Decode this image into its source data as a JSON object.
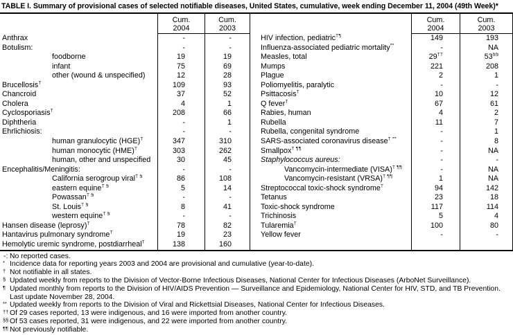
{
  "title": "TABLE I. Summary of provisional cases of selected notifiable diseases, United States, cumulative, week ending December 11, 2004 (49th Week)*",
  "header": {
    "cum": "Cum.",
    "y2004": "2004",
    "y2003": "2003"
  },
  "left_rows": [
    {
      "label": "Anthrax",
      "v2004": "-",
      "v2003": "-"
    },
    {
      "label": "Botulism:",
      "v2004": "-",
      "v2003": "-"
    },
    {
      "label": "foodborne",
      "indent": 1,
      "v2004": "19",
      "v2003": "19"
    },
    {
      "label": "infant",
      "indent": 1,
      "v2004": "75",
      "v2003": "69"
    },
    {
      "label": "other (wound & unspecified)",
      "indent": 1,
      "v2004": "12",
      "v2003": "28"
    },
    {
      "label": "Brucellosis",
      "sup": "†",
      "v2004": "109",
      "v2003": "93"
    },
    {
      "label": "Chancroid",
      "v2004": "37",
      "v2003": "52"
    },
    {
      "label": "Cholera",
      "v2004": "4",
      "v2003": "1"
    },
    {
      "label": "Cyclosporiasis",
      "sup": "†",
      "v2004": "208",
      "v2003": "66"
    },
    {
      "label": "Diphtheria",
      "v2004": "-",
      "v2003": "1"
    },
    {
      "label": "Ehrlichiosis:",
      "v2004": "-",
      "v2003": "-"
    },
    {
      "label": "human granulocytic (HGE)",
      "sup": "†",
      "indent": 1,
      "v2004": "347",
      "v2003": "310"
    },
    {
      "label": "human monocytic (HME)",
      "sup": "†",
      "indent": 1,
      "v2004": "303",
      "v2003": "262"
    },
    {
      "label": "human, other and unspecified",
      "indent": 1,
      "v2004": "30",
      "v2003": "45"
    },
    {
      "label": "Encephalitis/Meningitis:",
      "v2004": "-",
      "v2003": "-"
    },
    {
      "label": "California serogroup viral",
      "sup": "† §",
      "indent": 1,
      "v2004": "86",
      "v2003": "108"
    },
    {
      "label": "eastern equine",
      "sup": "† §",
      "indent": 1,
      "v2004": "5",
      "v2003": "14"
    },
    {
      "label": "Powassan",
      "sup": "† §",
      "indent": 1,
      "v2004": "-",
      "v2003": "-"
    },
    {
      "label": "St. Louis",
      "sup": "† §",
      "indent": 1,
      "v2004": "8",
      "v2003": "41"
    },
    {
      "label": "western equine",
      "sup": "† §",
      "indent": 1,
      "v2004": "-",
      "v2003": "-"
    },
    {
      "label": "Hansen disease (leprosy)",
      "sup": "†",
      "v2004": "78",
      "v2003": "82"
    },
    {
      "label": "Hantavirus pulmonary syndrome",
      "sup": "†",
      "v2004": "19",
      "v2003": "23"
    },
    {
      "label": "Hemolytic uremic syndrome, postdiarrheal",
      "sup": "†",
      "v2004": "138",
      "v2003": "160"
    }
  ],
  "right_rows": [
    {
      "label": "HIV infection, pediatric",
      "sup": "†¶",
      "v2004": "149",
      "v2003": "193"
    },
    {
      "label": "Influenza-associated pediatric mortality",
      "sup": "**",
      "v2004": "-",
      "v2003": "NA"
    },
    {
      "label": "Measles, total",
      "v2004": "29",
      "s2004": "††",
      "v2003": "53",
      "s2003": "§§"
    },
    {
      "label": "Mumps",
      "v2004": "221",
      "v2003": "208"
    },
    {
      "label": "Plague",
      "v2004": "2",
      "v2003": "1"
    },
    {
      "label": "Poliomyelitis, paralytic",
      "v2004": "-",
      "v2003": "-"
    },
    {
      "label": "Psittacosis",
      "sup": "†",
      "v2004": "10",
      "v2003": "12"
    },
    {
      "label": "Q fever",
      "sup": "†",
      "v2004": "67",
      "v2003": "61"
    },
    {
      "label": "Rabies, human",
      "v2004": "4",
      "v2003": "2"
    },
    {
      "label": "Rubella",
      "v2004": "11",
      "v2003": "7"
    },
    {
      "label": "Rubella, congenital syndrome",
      "v2004": "-",
      "v2003": "1"
    },
    {
      "label": "SARS-associated coronavirus disease",
      "sup": "† **",
      "v2004": "-",
      "v2003": "8"
    },
    {
      "label": "Smallpox",
      "sup": "† ¶¶",
      "v2004": "-",
      "v2003": "NA"
    },
    {
      "label": "Staphylococcus aureus:",
      "italic": true,
      "v2004": "-",
      "v2003": "-"
    },
    {
      "label": "Vancomycin-intermediate (VISA)",
      "sup": "† ¶¶",
      "indent": 1,
      "v2004": "-",
      "v2003": "NA"
    },
    {
      "label": "Vancomycin-resistant (VRSA)",
      "sup": "† ¶¶",
      "indent": 1,
      "v2004": "1",
      "v2003": "NA"
    },
    {
      "label": "Streptococcal toxic-shock syndrome",
      "sup": "†",
      "v2004": "94",
      "v2003": "142"
    },
    {
      "label": "Tetanus",
      "v2004": "23",
      "v2003": "18"
    },
    {
      "label": "Toxic-shock syndrome",
      "v2004": "117",
      "v2003": "114"
    },
    {
      "label": "Trichinosis",
      "v2004": "5",
      "v2003": "4"
    },
    {
      "label": "Tularemia",
      "sup": "†",
      "v2004": "100",
      "v2003": "80"
    },
    {
      "label": "Yellow fever",
      "v2004": "-",
      "v2003": "-"
    }
  ],
  "footnotes": [
    {
      "marker": "-:",
      "sup": false,
      "lines": [
        "No reported cases."
      ]
    },
    {
      "marker": "*",
      "sup": true,
      "lines": [
        "Incidence data for reporting years 2003 and 2004 are provisional and cumulative (year-to-date)."
      ]
    },
    {
      "marker": "†",
      "sup": true,
      "lines": [
        "Not notifiable in all states."
      ]
    },
    {
      "marker": "§",
      "sup": true,
      "lines": [
        "Updated weekly from reports to the Division of Vector-Borne Infectious Diseases, National Center for Infectious Diseases (ArboNet Surveillance)."
      ]
    },
    {
      "marker": "¶",
      "sup": true,
      "lines": [
        "Updated monthly from reports to the Division of HIV/AIDS Prevention — Surveillance and Epidemiology, National Center for HIV, STD, and TB Prevention.",
        "Last update November 28, 2004."
      ]
    },
    {
      "marker": "**",
      "sup": true,
      "lines": [
        "Updated weekly from reports to the Division of Viral and Rickettsial Diseases, National Center for Infectious Diseases."
      ]
    },
    {
      "marker": "††",
      "sup": true,
      "lines": [
        "Of 29 cases reported, 13 were indigenous, and 16 were imported from another country."
      ]
    },
    {
      "marker": "§§",
      "sup": true,
      "lines": [
        "Of 53 cases reported, 31 were indigenous, and 22 were imported from another country."
      ]
    },
    {
      "marker": "¶¶",
      "sup": true,
      "lines": [
        "Not previously notifiable."
      ]
    }
  ]
}
